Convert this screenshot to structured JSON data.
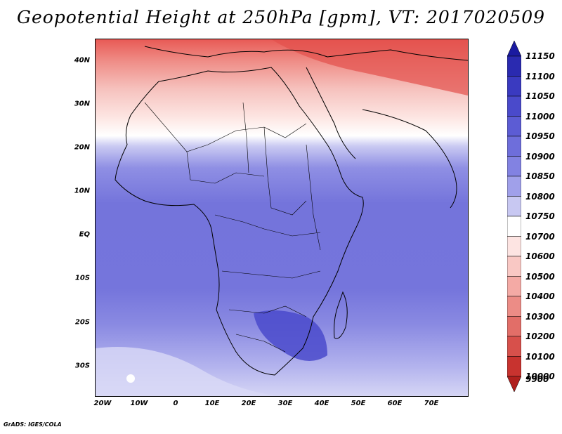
{
  "title": "Geopotential Height at 250hPa [gpm], VT: 2017020509",
  "footer": "GrADS: IGES/COLA",
  "map": {
    "lat_labels": [
      "40N",
      "30N",
      "20N",
      "10N",
      "EQ",
      "10S",
      "20S",
      "30S"
    ],
    "lon_labels": [
      "20W",
      "10W",
      "0",
      "10E",
      "20E",
      "30E",
      "40E",
      "50E",
      "60E",
      "70E"
    ]
  },
  "colorbar": {
    "labels": [
      "11150",
      "11100",
      "11050",
      "11000",
      "10950",
      "10900",
      "10850",
      "10800",
      "10750",
      "10700",
      "10600",
      "10500",
      "10400",
      "10300",
      "10200",
      "10100",
      "10000",
      "9900"
    ],
    "colors": [
      "#1a1aa0",
      "#2a2ab0",
      "#3a3ac0",
      "#4a4acb",
      "#5c5cd4",
      "#6e6edb",
      "#8282e2",
      "#a0a0ea",
      "#c8c8f2",
      "#ffffff",
      "#fde4e2",
      "#f9c8c4",
      "#f4aaa5",
      "#ec8c86",
      "#e26e68",
      "#d7504b",
      "#c8332f",
      "#b0201d"
    ]
  }
}
